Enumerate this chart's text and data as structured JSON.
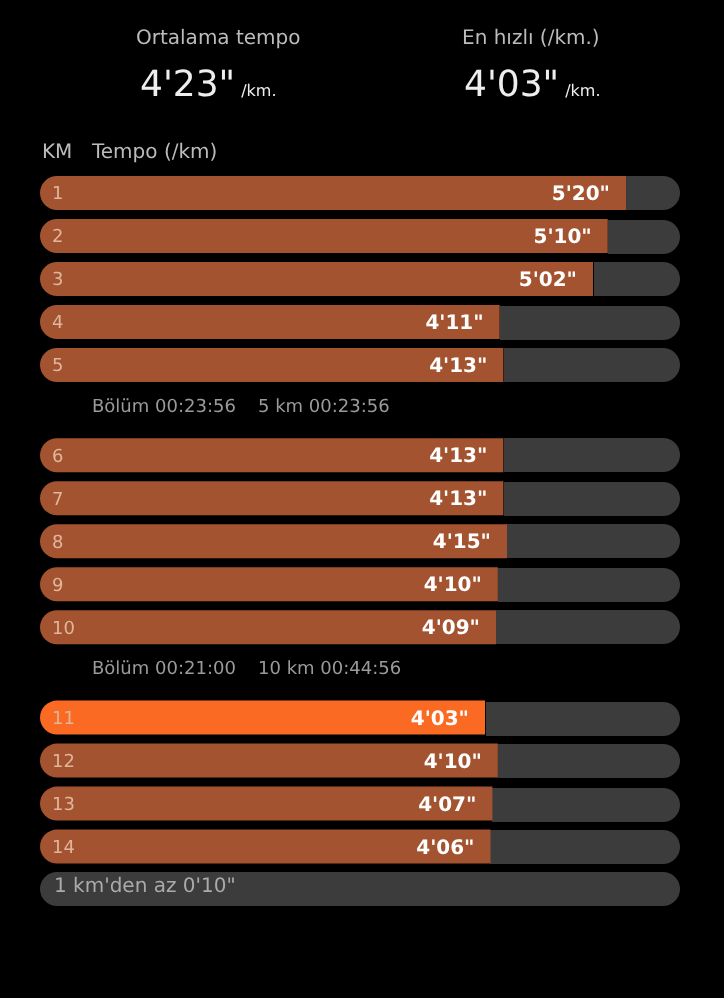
{
  "chart_data": {
    "type": "bar",
    "orientation": "horizontal",
    "tick_labels": false,
    "ylabel": "KM",
    "xlabel": "Tempo (/km)",
    "categories": [
      "1",
      "2",
      "3",
      "4",
      "5",
      "6",
      "7",
      "8",
      "9",
      "10",
      "11",
      "12",
      "13",
      "14"
    ],
    "values": [
      5.333,
      5.167,
      5.033,
      4.183,
      4.217,
      4.217,
      4.217,
      4.25,
      4.167,
      4.15,
      4.05,
      4.167,
      4.117,
      4.1
    ],
    "colors": [
      "#a3532f",
      "#a3532f",
      "#a3532f",
      "#a3532f",
      "#a3532f",
      "#a3532f",
      "#a3532f",
      "#a3532f",
      "#a3532f",
      "#a3532f",
      "#fb6a22",
      "#a3532f",
      "#a3532f",
      "#a3532f"
    ],
    "value_labels": [
      "5'20\"",
      "5'10\"",
      "5'02\"",
      "4'11\"",
      "4'13\"",
      "4'13\"",
      "4'13\"",
      "4'15\"",
      "4'10\"",
      "4'09\"",
      "4'03\"",
      "4'10\"",
      "4'07\"",
      "4'06\""
    ],
    "annotations": [
      "Ortalama tempo",
      "4'23\"",
      "/km.",
      "En hızlı (/km.)",
      "4'03\"",
      "/km.",
      "Bölüm 00:23:56",
      "5 km 00:23:56",
      "Bölüm 00:21:00",
      "10 km 00:44:56",
      "1 km'den az 0'10\""
    ]
  }
}
